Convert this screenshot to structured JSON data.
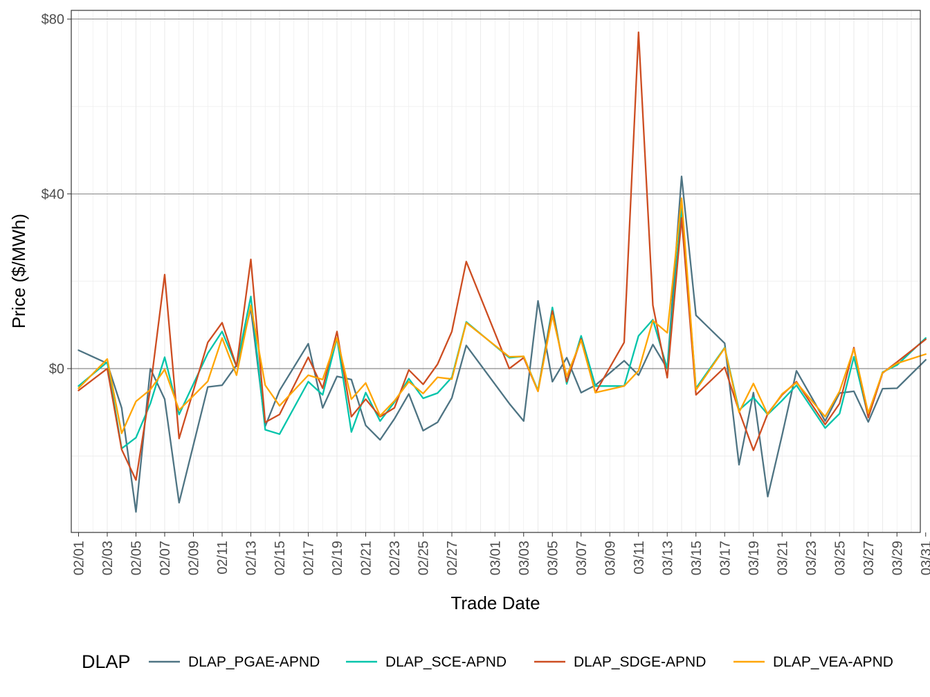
{
  "chart_data": {
    "type": "line",
    "title": "",
    "xlabel": "Trade Date",
    "ylabel": "Price ($/MWh)",
    "ylim": [
      -37.5,
      82
    ],
    "y_ticks": [
      0,
      40,
      80
    ],
    "y_tick_labels": [
      "$0",
      "$40",
      "$80"
    ],
    "x_tick_labels": [
      "02/01",
      "02/03",
      "02/05",
      "02/07",
      "02/09",
      "02/11",
      "02/13",
      "02/15",
      "02/17",
      "02/19",
      "02/21",
      "02/23",
      "02/25",
      "02/27",
      "03/01",
      "03/03",
      "03/05",
      "03/07",
      "03/09",
      "03/11",
      "03/13",
      "03/15",
      "03/17",
      "03/19",
      "03/21",
      "03/23",
      "03/25",
      "03/27",
      "03/29",
      "03/31"
    ],
    "x": [
      "02/01",
      "02/03",
      "02/04",
      "02/05",
      "02/06",
      "02/07",
      "02/08",
      "02/10",
      "02/11",
      "02/12",
      "02/13",
      "02/14",
      "02/15",
      "02/17",
      "02/18",
      "02/19",
      "02/20",
      "02/21",
      "02/22",
      "02/23",
      "02/24",
      "02/25",
      "02/26",
      "02/27",
      "02/28",
      "03/02",
      "03/03",
      "03/04",
      "03/05",
      "03/06",
      "03/07",
      "03/08",
      "03/10",
      "03/11",
      "03/12",
      "03/13",
      "03/14",
      "03/15",
      "03/17",
      "03/18",
      "03/19",
      "03/20",
      "03/21",
      "03/22",
      "03/24",
      "03/25",
      "03/26",
      "03/27",
      "03/28",
      "03/29",
      "03/31"
    ],
    "grid": true,
    "legend": {
      "title": "DLAP",
      "position": "bottom"
    },
    "series": [
      {
        "name": "DLAP_PGAE-APND",
        "color": "#4E7483",
        "values": [
          4.2,
          1.2,
          -9,
          -32.8,
          0,
          -7,
          -30.7,
          -4.2,
          -3.8,
          0.8,
          13.8,
          -13.2,
          -5,
          5.7,
          -9,
          -1.8,
          -2.5,
          -13,
          -16.3,
          -11.5,
          -5.8,
          -14.2,
          -12.3,
          -6.7,
          5.3,
          -8,
          -12,
          15.5,
          -3,
          2.5,
          -5.5,
          -3.8,
          1.8,
          -1.5,
          5.5,
          0,
          44,
          12.2,
          5.8,
          -22,
          -5.5,
          -29.3,
          -15.2,
          -0.5,
          -12,
          -5.6,
          -5.2,
          -12.2,
          -4.6,
          -4.5,
          2
        ]
      },
      {
        "name": "DLAP_SCE-APND",
        "color": "#00C4AA",
        "values": [
          -4,
          1.5,
          -18.3,
          -15.8,
          -8,
          2.6,
          -10.5,
          3.5,
          8.5,
          0.5,
          16.5,
          -14,
          -15,
          -3,
          -6,
          7,
          -14.5,
          -5.5,
          -12,
          -7.7,
          -2.3,
          -6.8,
          -5.6,
          -2,
          10.7,
          2.5,
          2.8,
          -5,
          14,
          -3.5,
          7.5,
          -4,
          -4,
          7.5,
          11.2,
          0,
          37,
          -4.5,
          4.8,
          -9.5,
          -6.6,
          -10.5,
          -7.3,
          -3.8,
          -13.6,
          -10.3,
          2.7,
          -11,
          -0.8,
          0.8,
          7
        ]
      },
      {
        "name": "DLAP_SDGE-APND",
        "color": "#CD4D21",
        "values": [
          -5,
          0,
          -18.5,
          -25.5,
          -4.5,
          21.5,
          -16,
          6,
          10.5,
          0.5,
          25,
          -12.3,
          -10.5,
          2.6,
          -4.5,
          8.5,
          -11,
          -7,
          -11,
          -9,
          -0.3,
          -3.6,
          1,
          8.5,
          24.5,
          0,
          2.5,
          -5.2,
          13.2,
          -3,
          6.8,
          -5.5,
          6,
          77,
          14.5,
          -2.1,
          34.5,
          -6,
          0.3,
          -9.7,
          -18.7,
          -10.3,
          -6,
          -3,
          -12.8,
          -8,
          4.8,
          -11.2,
          -1,
          1.5,
          6.7
        ]
      },
      {
        "name": "DLAP_VEA-APND",
        "color": "#FFA500",
        "values": [
          -4.5,
          2.2,
          -14.8,
          -7.5,
          -4.8,
          -0.2,
          -9.5,
          -2.9,
          7,
          -1.5,
          14.5,
          -3.8,
          -8.5,
          -1.5,
          -2.5,
          7,
          -7,
          -3.3,
          -10.8,
          -7.4,
          -3,
          -5.7,
          -2,
          -2.4,
          10.5,
          2.7,
          2.8,
          -5.2,
          12.2,
          -1.8,
          6.5,
          -5.5,
          -4,
          -0.5,
          11,
          8.2,
          39,
          -4.9,
          4.7,
          -10,
          -3.4,
          -10.5,
          -5.8,
          -3.2,
          -11,
          -5.2,
          4.5,
          -10.2,
          -0.9,
          1.2,
          3.3
        ]
      }
    ]
  }
}
